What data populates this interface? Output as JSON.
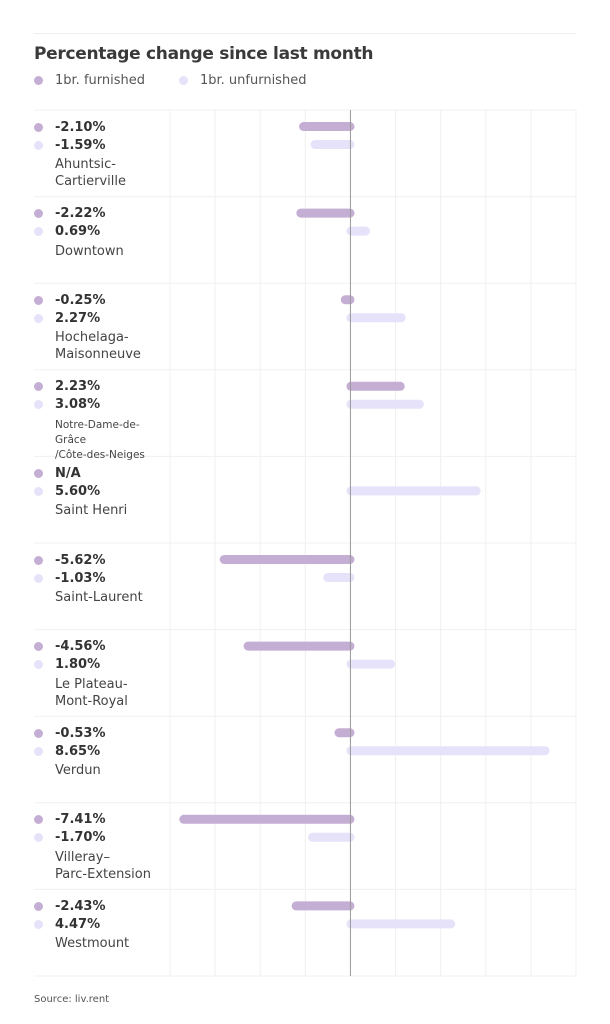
{
  "colors": {
    "furnished": "#C5AED4",
    "unfurnished": "#E6E2FA",
    "axis": "#999999",
    "grid": "#f0f0f0"
  },
  "chart_data": {
    "type": "bar",
    "orientation": "horizontal",
    "title": "Percentage change since last month",
    "xlim": [
      -8,
      10
    ],
    "grid_step": 2,
    "grid": true,
    "legend_position": "top-left",
    "legend": [
      "1br. furnished",
      "1br. unfurnished"
    ],
    "categories": [
      "Ahuntsic-\nCartierville",
      "Downtown",
      "Hochelaga-\nMaisonneuve",
      "Notre-Dame-de-Grâce\n/Côte-des-Neiges",
      "Saint Henri",
      "Saint-Laurent",
      "Le Plateau-\nMont-Royal",
      "Verdun",
      "Villeray–\nParc-Extension",
      "Westmount"
    ],
    "series": [
      {
        "name": "1br. furnished",
        "values": [
          -2.1,
          -2.22,
          -0.25,
          2.23,
          null,
          -5.62,
          -4.56,
          -0.53,
          -7.41,
          -2.43
        ],
        "labels": [
          "-2.10%",
          "-2.22%",
          "-0.25%",
          "2.23%",
          "N/A",
          "-5.62%",
          "-4.56%",
          "-0.53%",
          "-7.41%",
          "-2.43%"
        ]
      },
      {
        "name": "1br. unfurnished",
        "values": [
          -1.59,
          0.69,
          2.27,
          3.08,
          5.6,
          -1.03,
          1.8,
          8.65,
          -1.7,
          4.47
        ],
        "labels": [
          "-1.59%",
          "0.69%",
          "2.27%",
          "3.08%",
          "5.60%",
          "-1.03%",
          "1.80%",
          "8.65%",
          "-1.70%",
          "4.47%"
        ]
      }
    ]
  },
  "source": "Source: liv.rent"
}
